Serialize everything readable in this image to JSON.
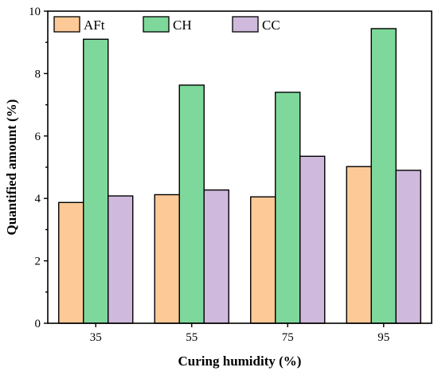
{
  "chart_data": {
    "type": "bar",
    "categories": [
      "35",
      "55",
      "75",
      "95"
    ],
    "series": [
      {
        "name": "AFt",
        "values": [
          3.87,
          4.12,
          4.05,
          5.02
        ],
        "color": "#fdc996"
      },
      {
        "name": "CH",
        "values": [
          9.1,
          7.63,
          7.4,
          9.44
        ],
        "color": "#7fd89b"
      },
      {
        "name": "CC",
        "values": [
          4.08,
          4.27,
          5.35,
          4.9
        ],
        "color": "#cfb9dc"
      }
    ],
    "xlabel": "Curing humidity  (%)",
    "ylabel": "Quantified amount (%)",
    "ylim": [
      0,
      10
    ],
    "yticks": [
      0,
      2,
      4,
      6,
      8,
      10
    ],
    "grid": false,
    "legend_position": "top-left"
  }
}
